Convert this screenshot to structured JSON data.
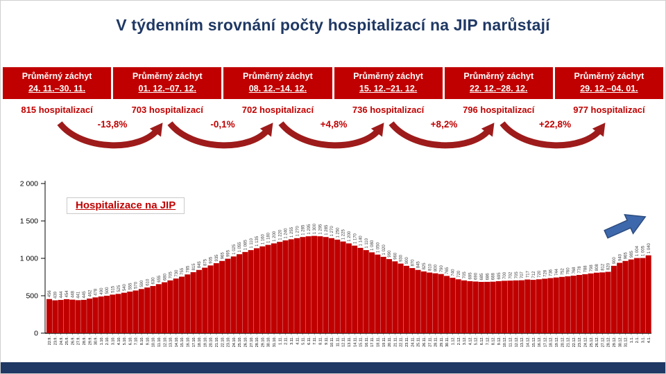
{
  "slide": {
    "title": "V týdenním srovnání počty hospitalizací na JIP narůstají",
    "title_color": "#1F3864",
    "accent_color": "#C00000",
    "footer_bar_color": "#1F3864"
  },
  "icons": {
    "trend_swoosh": "curved-up-arrow",
    "growth_arrow": "up-right-block-arrow"
  },
  "stats": {
    "columns": [
      {
        "label_line1": "Průměrný záchyt",
        "label_line2": "24. 11.–30. 11.",
        "value": "815 hospitalizací"
      },
      {
        "label_line1": "Průměrný záchyt",
        "label_line2": "01. 12.–07. 12.",
        "value": "703 hospitalizací"
      },
      {
        "label_line1": "Průměrný záchyt",
        "label_line2": "08. 12.–14. 12.",
        "value": "702 hospitalizací"
      },
      {
        "label_line1": "Průměrný záchyt",
        "label_line2": "15. 12.–21. 12.",
        "value": "736 hospitalizací"
      },
      {
        "label_line1": "Průměrný záchyt",
        "label_line2": "22. 12.–28. 12.",
        "value": "796 hospitalizací"
      },
      {
        "label_line1": "Průměrný záchyt",
        "label_line2": "29. 12.–04. 01.",
        "value": "977 hospitalizací"
      }
    ],
    "changes": [
      "-13,8%",
      "-0,1%",
      "+4,8%",
      "+8,2%",
      "+22,8%"
    ],
    "change_arrow_color": "#9E1B1B"
  },
  "chart_data": {
    "type": "bar",
    "title": "Hospitalizace na JIP",
    "xlabel": "",
    "ylabel": "",
    "ylim": [
      0,
      2000
    ],
    "yticks": [
      0,
      500,
      1000,
      1500,
      2000
    ],
    "grid": false,
    "legend_position": "none",
    "bar_color": "#C00000",
    "trend_arrow_color": "#3E68AC",
    "categories": [
      "22.9.",
      "23.9.",
      "24.9.",
      "25.9.",
      "26.9.",
      "27.9.",
      "28.9.",
      "29.9.",
      "30.9.",
      "1.10.",
      "2.10.",
      "3.10.",
      "4.10.",
      "5.10.",
      "6.10.",
      "7.10.",
      "8.10.",
      "9.10.",
      "10.10.",
      "11.10.",
      "12.10.",
      "13.10.",
      "14.10.",
      "15.10.",
      "16.10.",
      "17.10.",
      "18.10.",
      "19.10.",
      "20.10.",
      "21.10.",
      "22.10.",
      "23.10.",
      "24.10.",
      "25.10.",
      "26.10.",
      "27.10.",
      "28.10.",
      "29.10.",
      "30.10.",
      "31.10.",
      "1.11.",
      "2.11.",
      "3.11.",
      "4.11.",
      "5.11.",
      "6.11.",
      "7.11.",
      "8.11.",
      "9.11.",
      "10.11.",
      "11.11.",
      "12.11.",
      "13.11.",
      "14.11.",
      "15.11.",
      "16.11.",
      "17.11.",
      "18.11.",
      "19.11.",
      "20.11.",
      "21.11.",
      "22.11.",
      "23.11.",
      "24.11.",
      "25.11.",
      "26.11.",
      "27.11.",
      "28.11.",
      "29.11.",
      "30.11.",
      "1.12.",
      "2.12.",
      "3.12.",
      "4.12.",
      "5.12.",
      "6.12.",
      "7.12.",
      "8.12.",
      "9.12.",
      "10.12.",
      "11.12.",
      "12.12.",
      "13.12.",
      "14.12.",
      "15.12.",
      "16.12.",
      "17.12.",
      "18.12.",
      "19.12.",
      "20.12.",
      "21.12.",
      "22.12.",
      "23.12.",
      "24.12.",
      "25.12.",
      "26.12.",
      "27.12.",
      "28.12.",
      "29.12.",
      "30.12.",
      "31.12.",
      "1.1.",
      "2.1.",
      "3.1.",
      "4.1."
    ],
    "values": [
      456,
      439,
      444,
      454,
      448,
      441,
      445,
      462,
      478,
      490,
      500,
      515,
      525,
      540,
      555,
      570,
      590,
      610,
      630,
      655,
      680,
      705,
      730,
      755,
      785,
      815,
      845,
      875,
      905,
      935,
      965,
      995,
      1025,
      1055,
      1085,
      1110,
      1135,
      1160,
      1180,
      1200,
      1220,
      1240,
      1255,
      1270,
      1285,
      1295,
      1300,
      1295,
      1285,
      1270,
      1250,
      1225,
      1200,
      1170,
      1140,
      1110,
      1080,
      1050,
      1020,
      990,
      960,
      930,
      900,
      870,
      845,
      825,
      810,
      800,
      790,
      765,
      740,
      720,
      705,
      695,
      690,
      685,
      686,
      688,
      695,
      700,
      702,
      705,
      707,
      717,
      712,
      720,
      728,
      736,
      744,
      752,
      760,
      768,
      778,
      788,
      798,
      808,
      812,
      820,
      900,
      940,
      965,
      985,
      1004,
      1005,
      1040
    ]
  }
}
